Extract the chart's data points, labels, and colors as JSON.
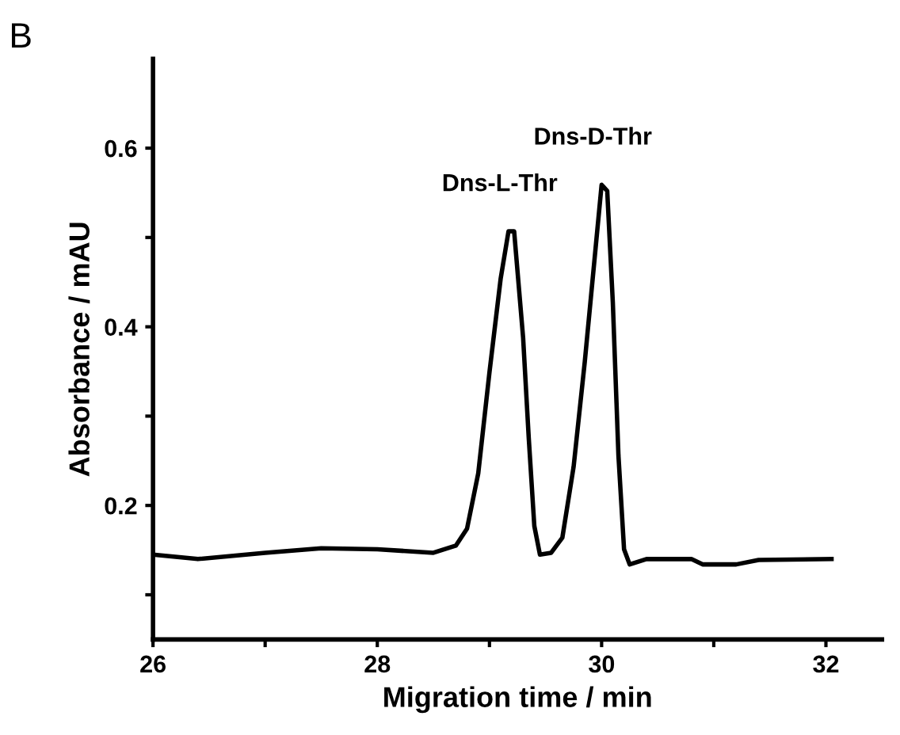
{
  "chart_data": {
    "type": "line",
    "title": "B",
    "xlabel": "Migration time / min",
    "ylabel": "Absorbance / mAU",
    "x": [
      26,
      26.4,
      27,
      27.5,
      28,
      28.5,
      28.7,
      28.8,
      28.9,
      29.0,
      29.1,
      29.17,
      29.22,
      29.3,
      29.35,
      29.4,
      29.45,
      29.55,
      29.65,
      29.75,
      29.85,
      29.95,
      30.0,
      30.05,
      30.1,
      30.15,
      30.2,
      30.25,
      30.4,
      30.8,
      30.9,
      31.2,
      31.4,
      32.05
    ],
    "series": [
      {
        "color": "#000000",
        "values": [
          0.145,
          0.14,
          0.147,
          0.152,
          0.151,
          0.147,
          0.155,
          0.174,
          0.236,
          0.349,
          0.454,
          0.507,
          0.507,
          0.388,
          0.276,
          0.177,
          0.145,
          0.147,
          0.164,
          0.243,
          0.361,
          0.493,
          0.559,
          0.552,
          0.427,
          0.256,
          0.151,
          0.134,
          0.14,
          0.14,
          0.134,
          0.134,
          0.139,
          0.14
        ]
      }
    ],
    "xlim": [
      26,
      32.5
    ],
    "ylim": [
      0.05,
      0.7
    ],
    "xticks": [
      26,
      {
        "value": 27,
        "label": null
      },
      28,
      {
        "value": 29,
        "label": null
      },
      30,
      {
        "value": 31,
        "label": null
      },
      32
    ],
    "yticks": [
      {
        "value": 0.1,
        "label": null
      },
      0.2,
      {
        "value": 0.3,
        "label": null
      },
      0.4,
      {
        "value": 0.5,
        "label": null
      },
      0.6
    ],
    "annotations": [
      {
        "text": "Dns-L-Thr",
        "x": 29.17,
        "y": 0.507
      },
      {
        "text": "Dns-D-Thr",
        "x": 30.0,
        "y": 0.559
      }
    ],
    "grid": false,
    "legend": false,
    "marker": "none",
    "line_style": "solid"
  }
}
